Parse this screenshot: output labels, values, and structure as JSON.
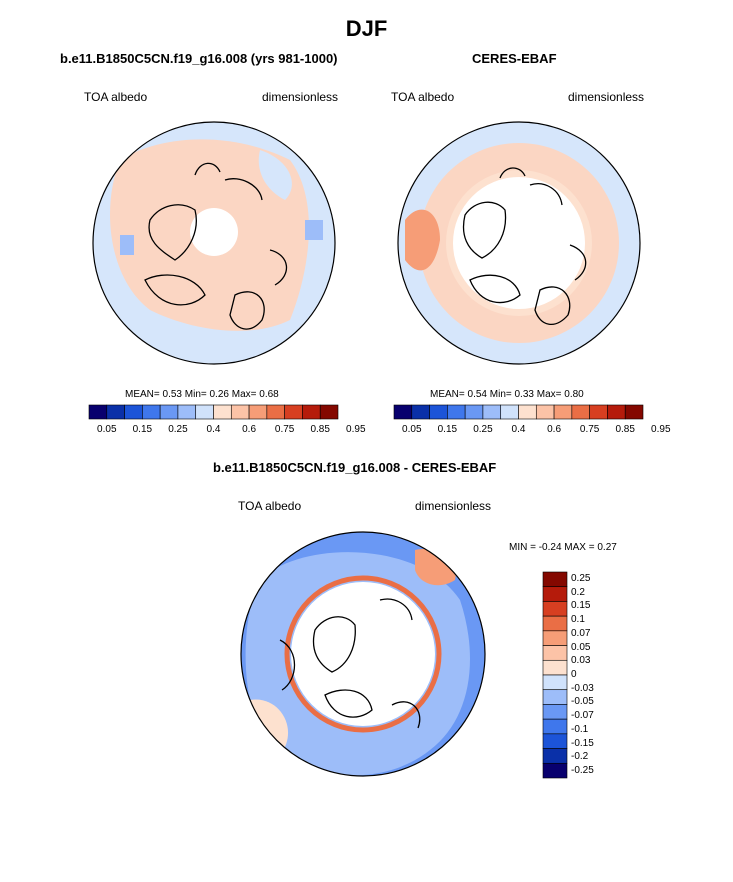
{
  "title": "DJF",
  "colors": {
    "bar": [
      "#08006e",
      "#0a30a8",
      "#1c54d8",
      "#3f77ec",
      "#6a98f4",
      "#9dbdf9",
      "#d0e2fb",
      "#fde1cf",
      "#fcc3a7",
      "#f69d77",
      "#ea6e45",
      "#d73f21",
      "#b51b0b",
      "#840800"
    ],
    "diff": [
      "#840800",
      "#b51b0b",
      "#d73f21",
      "#ea6e45",
      "#f69d77",
      "#fcc3a7",
      "#fde1cf",
      "#d0e2fb",
      "#9dbdf9",
      "#6a98f4",
      "#3f77ec",
      "#1c54d8",
      "#0a30a8",
      "#08006e"
    ],
    "land": "#fbd6c3",
    "ocean": "#d6e6fb",
    "coast": "#000000"
  },
  "panels": {
    "left": {
      "subtitle": "b.e11.B1850C5CN.f19_g16.008 (yrs 981-1000)",
      "var_label": "TOA albedo",
      "units_label": "dimensionless",
      "mean_label": "MEAN=",
      "mean": "0.53",
      "min_label": "Min=",
      "min": "0.26",
      "max_label": "Max=",
      "max": "0.68"
    },
    "right": {
      "subtitle": "CERES-EBAF",
      "var_label": "TOA albedo",
      "units_label": "dimensionless",
      "mean_label": "MEAN=",
      "mean": "0.54",
      "min_label": "Min=",
      "min": "0.33",
      "max_label": "Max=",
      "max": "0.80"
    },
    "diff": {
      "subtitle": "b.e11.B1850C5CN.f19_g16.008 - CERES-EBAF",
      "var_label": "TOA albedo",
      "units_label": "dimensionless",
      "minmax": "MIN =  -0.24 MAX =   0.27"
    }
  },
  "chart_data": [
    {
      "type": "heatmap",
      "title": "b.e11.B1850C5CN.f19_g16.008 (yrs 981-1000)",
      "variable": "TOA albedo",
      "units": "dimensionless",
      "projection": "north polar stereographic",
      "mean": 0.53,
      "min": 0.26,
      "max": 0.68,
      "colorbar_levels": [
        0.05,
        0.1,
        0.15,
        0.2,
        0.25,
        0.3,
        0.4,
        0.5,
        0.6,
        0.7,
        0.75,
        0.8,
        0.85,
        0.9,
        0.95
      ],
      "colorbar_tick_labels": [
        "0.05",
        "0.15",
        "0.25",
        "0.4",
        "0.6",
        "0.75",
        "0.85",
        "0.95"
      ]
    },
    {
      "type": "heatmap",
      "title": "CERES-EBAF",
      "variable": "TOA albedo",
      "units": "dimensionless",
      "projection": "north polar stereographic",
      "mean": 0.54,
      "min": 0.33,
      "max": 0.8,
      "colorbar_levels": [
        0.05,
        0.1,
        0.15,
        0.2,
        0.25,
        0.3,
        0.4,
        0.5,
        0.6,
        0.7,
        0.75,
        0.8,
        0.85,
        0.9,
        0.95
      ],
      "colorbar_tick_labels": [
        "0.05",
        "0.15",
        "0.25",
        "0.4",
        "0.6",
        "0.75",
        "0.85",
        "0.95"
      ]
    },
    {
      "type": "heatmap",
      "title": "b.e11.B1850C5CN.f19_g16.008 - CERES-EBAF",
      "variable": "TOA albedo",
      "units": "dimensionless",
      "projection": "north polar stereographic",
      "min": -0.24,
      "max": 0.27,
      "colorbar_tick_labels": [
        "0.25",
        "0.2",
        "0.15",
        "0.1",
        "0.07",
        "0.05",
        "0.03",
        "0",
        "-0.03",
        "-0.05",
        "-0.07",
        "-0.1",
        "-0.15",
        "-0.2",
        "-0.25"
      ]
    }
  ]
}
